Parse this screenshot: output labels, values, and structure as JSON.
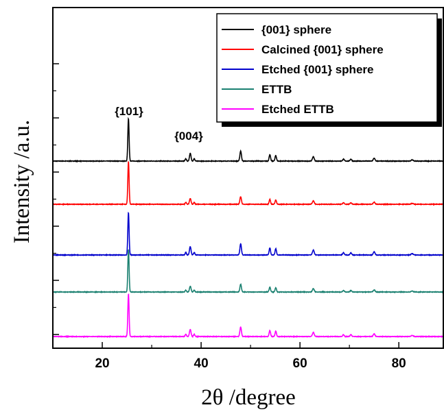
{
  "chart_data": {
    "type": "line",
    "xlabel": "2θ /degree",
    "ylabel": "Intensity /a.u.",
    "xlim": [
      10,
      89
    ],
    "x_ticks": [
      20,
      40,
      60,
      80
    ],
    "y_tick_labels": "none",
    "grid": false,
    "legend_placement": "top-right",
    "peaks_2theta": [
      {
        "x": 25.3,
        "height": 1.0,
        "width": 0.18
      },
      {
        "x": 36.9,
        "height": 0.06,
        "width": 0.18
      },
      {
        "x": 37.8,
        "height": 0.19,
        "width": 0.22
      },
      {
        "x": 38.6,
        "height": 0.06,
        "width": 0.18
      },
      {
        "x": 48.0,
        "height": 0.25,
        "width": 0.22
      },
      {
        "x": 53.9,
        "height": 0.16,
        "width": 0.2
      },
      {
        "x": 55.1,
        "height": 0.14,
        "width": 0.2
      },
      {
        "x": 62.7,
        "height": 0.11,
        "width": 0.25
      },
      {
        "x": 68.8,
        "height": 0.05,
        "width": 0.22
      },
      {
        "x": 70.3,
        "height": 0.05,
        "width": 0.22
      },
      {
        "x": 75.0,
        "height": 0.07,
        "width": 0.25
      },
      {
        "x": 82.7,
        "height": 0.03,
        "width": 0.3
      }
    ],
    "series": [
      {
        "name": "{001} sphere",
        "color": "#000000",
        "offset": 4,
        "scale": 0.95
      },
      {
        "name": "Calcined {001} sphere",
        "color": "#ff0000",
        "offset": 3,
        "scale": 0.72
      },
      {
        "name": "Etched {001} sphere",
        "color": "#0000cc",
        "offset": 2,
        "scale": 1.05
      },
      {
        "name": "ETTB",
        "color": "#1a8070",
        "offset": 1,
        "scale": 0.72
      },
      {
        "name": "Etched ETTB",
        "color": "#ff00ff",
        "offset": 0,
        "scale": 0.9
      }
    ],
    "annotations": [
      {
        "text": "{101}",
        "x": 25.3
      },
      {
        "text": "{004}",
        "x": 37.8
      }
    ]
  }
}
